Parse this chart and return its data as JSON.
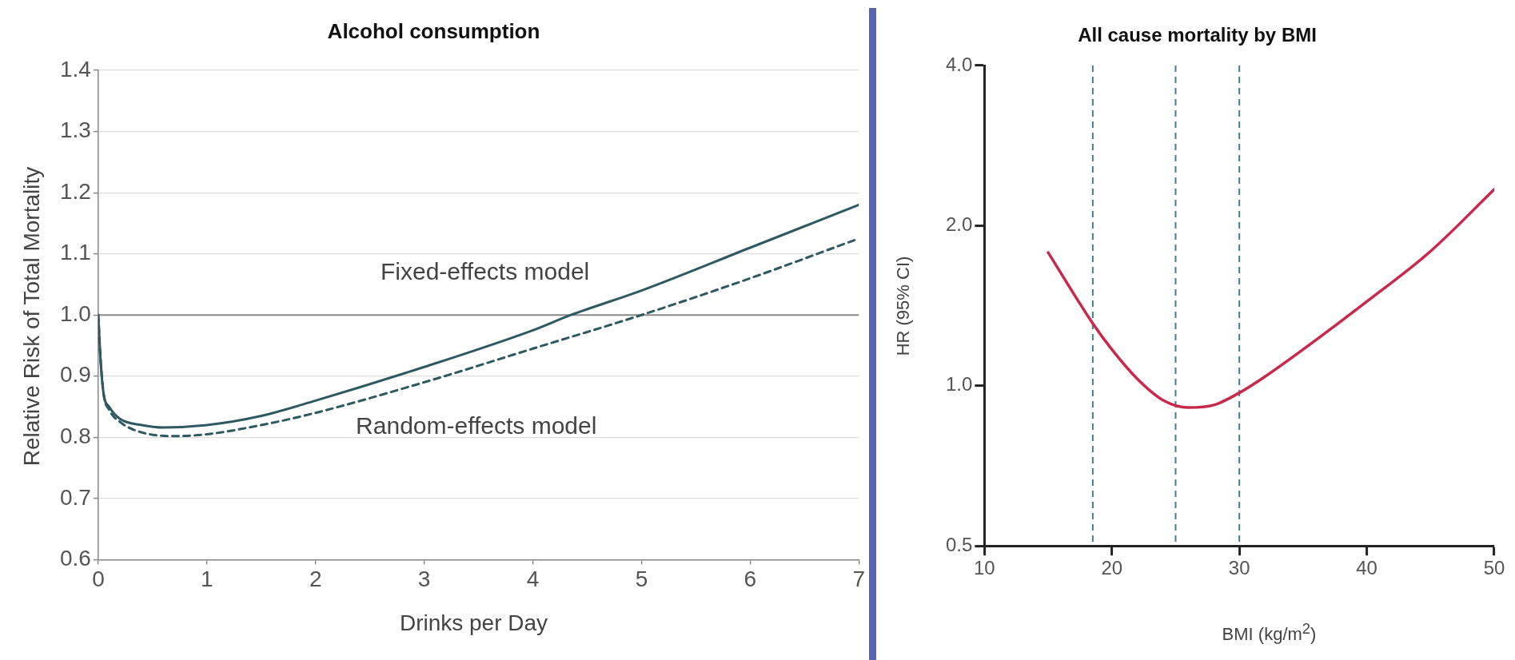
{
  "chart_data": [
    {
      "type": "line",
      "title": "Alcohol consumption",
      "xlabel": "Drinks per Day",
      "ylabel": "Relative Risk of Total Mortality",
      "xlim": [
        0,
        7
      ],
      "xticks": [
        0,
        1,
        2,
        3,
        4,
        5,
        6,
        7
      ],
      "ylim": [
        0.6,
        1.4
      ],
      "yticks": [
        0.6,
        0.7,
        0.8,
        0.9,
        {
          "value": 1.0,
          "label": "1.0"
        },
        1.1,
        1.2,
        1.3,
        1.4
      ],
      "grid": "y",
      "legend": false,
      "marker": "none",
      "ref_lines": [
        {
          "axis": "y",
          "value": 1.0,
          "label": null,
          "color": "#8a8a8a",
          "line_style": "solid"
        }
      ],
      "series": [
        {
          "name": "Fixed-effects model",
          "color": "#2f5961",
          "line_style": "solid",
          "x": [
            0,
            0.02,
            0.05,
            0.1,
            0.2,
            0.4,
            0.6,
            1,
            1.5,
            2,
            3,
            4,
            4.35,
            5,
            6,
            7
          ],
          "values": [
            1.0,
            0.93,
            0.87,
            0.85,
            0.83,
            0.82,
            0.816,
            0.82,
            0.835,
            0.86,
            0.915,
            0.975,
            1.0,
            1.04,
            1.11,
            1.18
          ]
        },
        {
          "name": "Random-effects model",
          "color": "#2f5961",
          "line_style": "dashed",
          "x": [
            0,
            0.02,
            0.05,
            0.1,
            0.2,
            0.4,
            0.7,
            1,
            1.5,
            2,
            3,
            4,
            5,
            6,
            7
          ],
          "values": [
            1.0,
            0.93,
            0.87,
            0.845,
            0.825,
            0.808,
            0.802,
            0.805,
            0.82,
            0.84,
            0.89,
            0.945,
            1.0,
            1.06,
            1.125
          ]
        }
      ]
    },
    {
      "type": "line",
      "title": "All cause mortality by BMI",
      "xlabel": "BMI (kg/m$^{2}$)",
      "ylabel": "HR (95% CI)",
      "log": "y",
      "xlim": [
        10,
        50
      ],
      "xticks": [
        10,
        20,
        30,
        40,
        50
      ],
      "ylim": [
        0.5,
        4
      ],
      "yticks": [
        0.5,
        {
          "value": 1,
          "label": "1.0"
        },
        {
          "value": 2,
          "label": "2.0"
        },
        {
          "value": 4,
          "label": "4.0"
        }
      ],
      "grid": false,
      "legend": false,
      "marker": "none",
      "ref_lines": [
        {
          "axis": "x",
          "value": 18.5,
          "label": null,
          "color": "#3f7f8a",
          "line_style": "dashed"
        },
        {
          "axis": "x",
          "value": 25,
          "label": null,
          "color": "#3f7f8a",
          "line_style": "dashed"
        },
        {
          "axis": "x",
          "value": 30,
          "label": null,
          "color": "#3f7f8a",
          "line_style": "dashed"
        }
      ],
      "series": [
        {
          "color": "#c8284a",
          "line_style": "solid",
          "x": [
            15,
            18.5,
            20,
            22,
            24,
            26,
            28,
            30,
            32,
            35,
            40,
            45,
            50
          ],
          "values": [
            1.78,
            1.31,
            1.17,
            1.03,
            0.94,
            0.91,
            0.92,
            0.97,
            1.04,
            1.17,
            1.44,
            1.79,
            2.34
          ]
        }
      ]
    }
  ]
}
